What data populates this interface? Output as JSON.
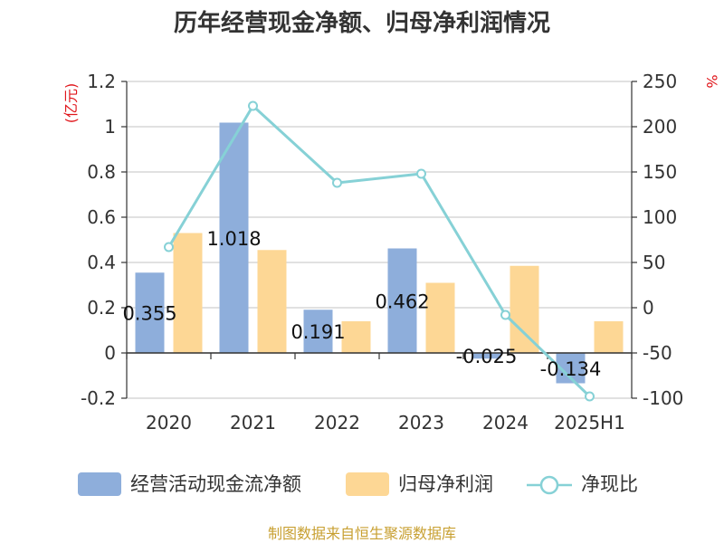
{
  "chart_data": {
    "type": "bar",
    "title": "历年经营现金净额、归母净利润情况",
    "categories": [
      "2020",
      "2021",
      "2022",
      "2023",
      "2024",
      "2025H1"
    ],
    "y_left": {
      "unit": "(亿元)",
      "range": [
        -0.2,
        1.2
      ],
      "ticks": [
        "-0.2",
        "0",
        "0.2",
        "0.4",
        "0.6",
        "0.8",
        "1",
        "1.2"
      ]
    },
    "y_right": {
      "unit": "%",
      "range": [
        -100,
        250
      ],
      "ticks": [
        "-100",
        "-50",
        "0",
        "50",
        "100",
        "150",
        "200",
        "250"
      ]
    },
    "series": [
      {
        "name": "经营活动现金流净额",
        "type": "bar",
        "axis": "left",
        "color": "#8eaedb",
        "values": [
          0.355,
          1.018,
          0.191,
          0.462,
          -0.025,
          -0.134
        ],
        "labels": [
          "0.355",
          "1.018",
          "0.191",
          "0.462",
          "-0.025",
          "-0.134"
        ]
      },
      {
        "name": "归母净利润",
        "type": "bar",
        "axis": "left",
        "color": "#fdd795",
        "values": [
          0.53,
          0.455,
          0.14,
          0.31,
          0.385,
          0.14
        ]
      },
      {
        "name": "净现比",
        "type": "line",
        "axis": "right",
        "color": "#86d1d6",
        "values": [
          67,
          223,
          138,
          148,
          -8,
          -98
        ]
      }
    ],
    "grid": true,
    "legend_position": "bottom"
  },
  "source_note": "制图数据来自恒生聚源数据库"
}
